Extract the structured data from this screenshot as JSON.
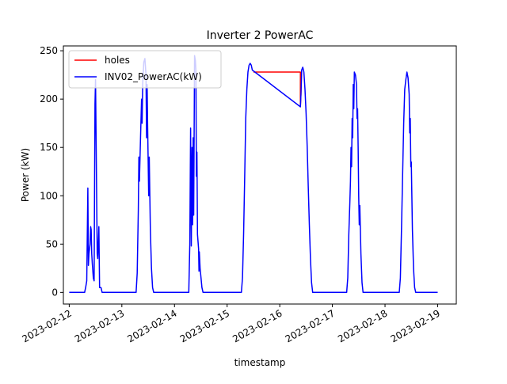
{
  "chart_data": {
    "type": "line",
    "title": "Inverter 2 PowerAC",
    "xlabel": "timestamp",
    "ylabel": "Power (kW)",
    "x_type": "date",
    "xlim": [
      "2023-02-11T21:20",
      "2023-02-19T08:30"
    ],
    "ylim": [
      -12,
      255
    ],
    "x_ticks": [
      "2023-02-12",
      "2023-02-13",
      "2023-02-14",
      "2023-02-15",
      "2023-02-16",
      "2023-02-17",
      "2023-02-18",
      "2023-02-19"
    ],
    "y_ticks": [
      0,
      50,
      100,
      150,
      200,
      250
    ],
    "grid": false,
    "legend_position": "top-left",
    "colors": {
      "holes": "#ff0000",
      "power": "#0000ff",
      "axes": "#000000"
    },
    "series": [
      {
        "name": "holes",
        "color": "#ff0000",
        "points": [
          [
            "2023-02-15T12:00",
            228
          ],
          [
            "2023-02-16T09:25",
            228
          ],
          [
            "2023-02-16T09:25",
            192
          ],
          [
            "2023-02-16T09:40",
            205
          ],
          [
            "2023-02-16T10:00",
            230
          ]
        ]
      },
      {
        "name": "INV02_PowerAC(kW)",
        "color": "#0000ff",
        "points": [
          [
            "2023-02-12T00:00",
            0
          ],
          [
            "2023-02-12T07:00",
            0
          ],
          [
            "2023-02-12T07:30",
            5
          ],
          [
            "2023-02-12T08:00",
            12
          ],
          [
            "2023-02-12T08:30",
            108
          ],
          [
            "2023-02-12T08:45",
            28
          ],
          [
            "2023-02-12T09:00",
            40
          ],
          [
            "2023-02-12T09:30",
            50
          ],
          [
            "2023-02-12T09:45",
            68
          ],
          [
            "2023-02-12T10:00",
            65
          ],
          [
            "2023-02-12T10:15",
            40
          ],
          [
            "2023-02-12T10:30",
            30
          ],
          [
            "2023-02-12T11:00",
            15
          ],
          [
            "2023-02-12T11:20",
            12
          ],
          [
            "2023-02-12T11:45",
            195
          ],
          [
            "2023-02-12T12:00",
            220
          ],
          [
            "2023-02-12T12:15",
            160
          ],
          [
            "2023-02-12T12:45",
            40
          ],
          [
            "2023-02-12T13:00",
            35
          ],
          [
            "2023-02-12T13:30",
            68
          ],
          [
            "2023-02-12T13:50",
            5
          ],
          [
            "2023-02-12T14:30",
            5
          ],
          [
            "2023-02-12T15:00",
            0
          ],
          [
            "2023-02-13T06:30",
            0
          ],
          [
            "2023-02-13T07:00",
            20
          ],
          [
            "2023-02-13T07:30",
            85
          ],
          [
            "2023-02-13T07:45",
            140
          ],
          [
            "2023-02-13T08:00",
            115
          ],
          [
            "2023-02-13T08:30",
            160
          ],
          [
            "2023-02-13T09:00",
            200
          ],
          [
            "2023-02-13T09:15",
            175
          ],
          [
            "2023-02-13T09:30",
            215
          ],
          [
            "2023-02-13T10:00",
            238
          ],
          [
            "2023-02-13T10:30",
            242
          ],
          [
            "2023-02-13T11:00",
            225
          ],
          [
            "2023-02-13T11:15",
            160
          ],
          [
            "2023-02-13T11:30",
            215
          ],
          [
            "2023-02-13T11:45",
            170
          ],
          [
            "2023-02-13T12:15",
            100
          ],
          [
            "2023-02-13T12:30",
            140
          ],
          [
            "2023-02-13T13:00",
            65
          ],
          [
            "2023-02-13T13:30",
            25
          ],
          [
            "2023-02-13T14:00",
            5
          ],
          [
            "2023-02-13T14:30",
            0
          ],
          [
            "2023-02-14T06:30",
            0
          ],
          [
            "2023-02-14T07:00",
            50
          ],
          [
            "2023-02-14T07:20",
            170
          ],
          [
            "2023-02-14T07:40",
            48
          ],
          [
            "2023-02-14T08:00",
            150
          ],
          [
            "2023-02-14T08:15",
            70
          ],
          [
            "2023-02-14T08:30",
            160
          ],
          [
            "2023-02-14T08:45",
            80
          ],
          [
            "2023-02-14T09:10",
            245
          ],
          [
            "2023-02-14T09:30",
            240
          ],
          [
            "2023-02-14T09:45",
            230
          ],
          [
            "2023-02-14T10:00",
            120
          ],
          [
            "2023-02-14T10:15",
            145
          ],
          [
            "2023-02-14T10:30",
            60
          ],
          [
            "2023-02-14T11:00",
            45
          ],
          [
            "2023-02-14T11:10",
            22
          ],
          [
            "2023-02-14T11:20",
            42
          ],
          [
            "2023-02-14T11:40",
            25
          ],
          [
            "2023-02-14T12:30",
            5
          ],
          [
            "2023-02-14T13:00",
            0
          ],
          [
            "2023-02-15T06:30",
            0
          ],
          [
            "2023-02-15T07:00",
            15
          ],
          [
            "2023-02-15T07:30",
            60
          ],
          [
            "2023-02-15T08:00",
            120
          ],
          [
            "2023-02-15T08:30",
            180
          ],
          [
            "2023-02-15T09:00",
            210
          ],
          [
            "2023-02-15T09:30",
            228
          ],
          [
            "2023-02-15T10:00",
            235
          ],
          [
            "2023-02-15T10:30",
            237
          ],
          [
            "2023-02-15T11:00",
            235
          ],
          [
            "2023-02-15T11:30",
            230
          ],
          [
            "2023-02-16T09:25",
            192
          ],
          [
            "2023-02-16T09:40",
            205
          ],
          [
            "2023-02-16T10:00",
            230
          ],
          [
            "2023-02-16T10:30",
            233
          ],
          [
            "2023-02-16T11:00",
            228
          ],
          [
            "2023-02-16T11:30",
            210
          ],
          [
            "2023-02-16T12:00",
            185
          ],
          [
            "2023-02-16T12:30",
            150
          ],
          [
            "2023-02-16T13:00",
            110
          ],
          [
            "2023-02-16T13:30",
            70
          ],
          [
            "2023-02-16T14:00",
            35
          ],
          [
            "2023-02-16T14:30",
            10
          ],
          [
            "2023-02-16T15:00",
            0
          ],
          [
            "2023-02-17T06:30",
            0
          ],
          [
            "2023-02-17T07:00",
            15
          ],
          [
            "2023-02-17T07:30",
            60
          ],
          [
            "2023-02-17T08:00",
            95
          ],
          [
            "2023-02-17T08:15",
            115
          ],
          [
            "2023-02-17T08:30",
            150
          ],
          [
            "2023-02-17T08:45",
            130
          ],
          [
            "2023-02-17T09:00",
            180
          ],
          [
            "2023-02-17T09:15",
            160
          ],
          [
            "2023-02-17T09:30",
            215
          ],
          [
            "2023-02-17T09:45",
            190
          ],
          [
            "2023-02-17T10:00",
            228
          ],
          [
            "2023-02-17T10:30",
            225
          ],
          [
            "2023-02-17T11:00",
            215
          ],
          [
            "2023-02-17T11:15",
            180
          ],
          [
            "2023-02-17T11:30",
            190
          ],
          [
            "2023-02-17T11:45",
            150
          ],
          [
            "2023-02-17T12:00",
            100
          ],
          [
            "2023-02-17T12:15",
            70
          ],
          [
            "2023-02-17T12:30",
            90
          ],
          [
            "2023-02-17T13:00",
            40
          ],
          [
            "2023-02-17T13:30",
            10
          ],
          [
            "2023-02-17T14:00",
            0
          ],
          [
            "2023-02-18T06:30",
            0
          ],
          [
            "2023-02-18T07:00",
            15
          ],
          [
            "2023-02-18T07:30",
            65
          ],
          [
            "2023-02-18T08:00",
            120
          ],
          [
            "2023-02-18T08:30",
            175
          ],
          [
            "2023-02-18T09:00",
            210
          ],
          [
            "2023-02-18T09:30",
            220
          ],
          [
            "2023-02-18T10:00",
            228
          ],
          [
            "2023-02-18T10:30",
            222
          ],
          [
            "2023-02-18T11:00",
            205
          ],
          [
            "2023-02-18T11:15",
            165
          ],
          [
            "2023-02-18T11:30",
            180
          ],
          [
            "2023-02-18T11:45",
            130
          ],
          [
            "2023-02-18T12:00",
            135
          ],
          [
            "2023-02-18T12:15",
            100
          ],
          [
            "2023-02-18T12:30",
            65
          ],
          [
            "2023-02-18T13:00",
            25
          ],
          [
            "2023-02-18T13:30",
            5
          ],
          [
            "2023-02-18T14:00",
            0
          ],
          [
            "2023-02-19T00:00",
            0
          ]
        ]
      }
    ]
  }
}
